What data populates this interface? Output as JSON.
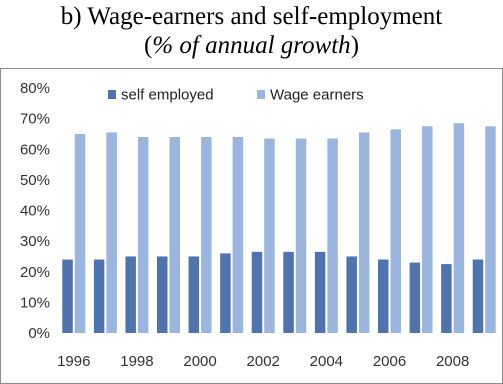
{
  "header": {
    "title": "b) Wage-earners and self-employment",
    "subtitle_open": "(",
    "subtitle_italic": "% of annual growth",
    "subtitle_close": ")"
  },
  "chart_data": {
    "type": "bar",
    "title": "b) Wage-earners and self-employment",
    "subtitle": "(% of annual growth)",
    "xlabel": "",
    "ylabel": "",
    "ylim": [
      0,
      80
    ],
    "yticks": [
      "0%",
      "10%",
      "20%",
      "30%",
      "40%",
      "50%",
      "60%",
      "70%",
      "80%"
    ],
    "categories": [
      "1996",
      "1997",
      "1998",
      "1999",
      "2000",
      "2001",
      "2002",
      "2003",
      "2004",
      "2005",
      "2006",
      "2007",
      "2008",
      "2009"
    ],
    "xtick_labels": [
      "1996",
      "1998",
      "2000",
      "2002",
      "2004",
      "2006",
      "2008"
    ],
    "legend_position": "top",
    "grid": false,
    "series": [
      {
        "name": "self employed",
        "color": "#4f74ad",
        "values": [
          24,
          24,
          25,
          25,
          25,
          26,
          26.5,
          26.5,
          26.5,
          25,
          24,
          23,
          22.5,
          24
        ]
      },
      {
        "name": "Wage earners",
        "color": "#9bb6de",
        "values": [
          65,
          65.5,
          64,
          64,
          64,
          64,
          63.5,
          63.5,
          63.5,
          65.5,
          66.5,
          67.5,
          68.5,
          67.5
        ]
      }
    ]
  }
}
